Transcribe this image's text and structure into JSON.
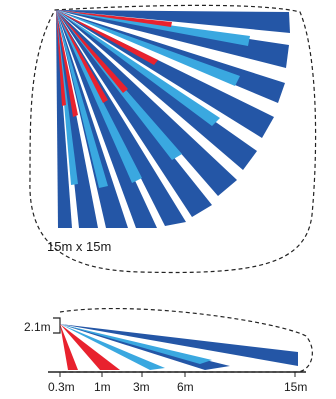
{
  "top_view": {
    "area_label": "15m x 15m",
    "colors": {
      "far": "#2456a6",
      "mid": "#3aa8e0",
      "near": "#e8222e",
      "outline": "#222222"
    }
  },
  "side_view": {
    "height_label": "2.1m",
    "distance_ticks": [
      "0.3m",
      "1m",
      "3m",
      "6m",
      "15m"
    ],
    "colors": {
      "far": "#2456a6",
      "mid": "#3aa8e0",
      "near": "#e8222e",
      "outline": "#222222"
    }
  }
}
